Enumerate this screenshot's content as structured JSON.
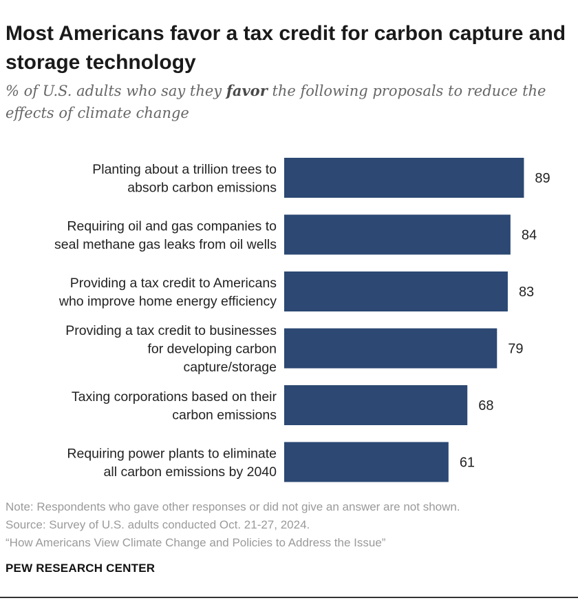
{
  "title": "Most Americans favor a tax credit for carbon capture and storage technology",
  "subtitle": {
    "before": "% of U.S. adults who say they ",
    "emphasis": "favor",
    "after": " the following proposals to reduce the effects of climate change"
  },
  "colors": {
    "bar": "#2c4873",
    "label": "#222222",
    "value": "#222222"
  },
  "chart_data": {
    "type": "bar",
    "orientation": "horizontal",
    "categories": [
      [
        "Planting about a trillion trees to",
        "absorb carbon emissions"
      ],
      [
        "Requiring oil and gas companies to",
        "seal methane gas leaks from oil wells"
      ],
      [
        "Providing a tax credit to Americans",
        "who improve home energy efficiency"
      ],
      [
        "Providing a tax credit to businesses",
        "for developing carbon",
        "capture/storage"
      ],
      [
        "Taxing corporations based on their",
        "carbon emissions"
      ],
      [
        "Requiring power plants to eliminate",
        "all carbon emissions by 2040"
      ]
    ],
    "values": [
      89,
      84,
      83,
      79,
      68,
      61
    ],
    "xlim": [
      0,
      100
    ],
    "title": "Most Americans favor a tax credit for carbon capture and storage technology",
    "xlabel": "",
    "ylabel": ""
  },
  "footer": {
    "note": "Note: Respondents who gave other responses or did not give an answer are not shown.",
    "source": "Source: Survey of U.S. adults conducted Oct. 21-27, 2024.",
    "report": "“How Americans View Climate Change and Policies to Address the Issue”"
  },
  "brand": "PEW RESEARCH CENTER"
}
